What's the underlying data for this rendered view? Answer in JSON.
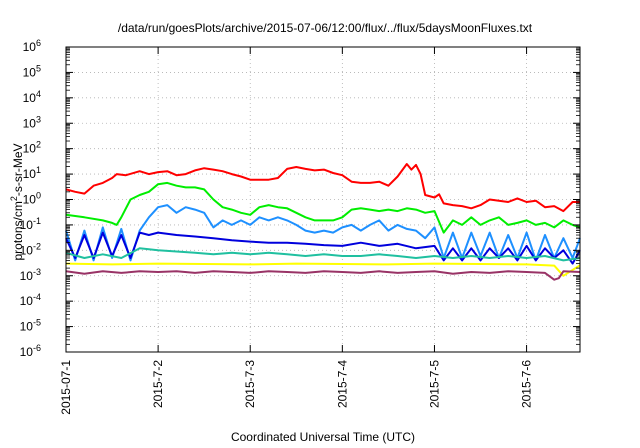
{
  "chart_data": {
    "type": "line",
    "title": "/data/run/goesPlots/archive/2015-07-06/12:00/flux/../flux/5daysMoonFluxes.txt",
    "xlabel": "Coordinated Universal Time (UTC)",
    "ylabel_parts": {
      "main": "protons/cm",
      "sup": "2",
      "rest": "-s-sr-MeV"
    },
    "x_unit": "days since 2015-07-01 00:00 UTC",
    "xlim": [
      0,
      5.58
    ],
    "x_ticks": [
      {
        "value": 0,
        "label": "2015-07-1"
      },
      {
        "value": 1,
        "label": "2015-7-2"
      },
      {
        "value": 2,
        "label": "2015-7-3"
      },
      {
        "value": 3,
        "label": "2015-7-4"
      },
      {
        "value": 4,
        "label": "2015-7-5"
      },
      {
        "value": 5,
        "label": "2015-7-6"
      }
    ],
    "y_scale": "log",
    "ylim": [
      1e-06,
      1000000.0
    ],
    "y_ticks": [
      {
        "exp": -6,
        "base": "10",
        "sup": "-6"
      },
      {
        "exp": -5,
        "base": "10",
        "sup": "-5"
      },
      {
        "exp": -4,
        "base": "10",
        "sup": "-4"
      },
      {
        "exp": -3,
        "base": "10",
        "sup": "-3"
      },
      {
        "exp": -2,
        "base": "10",
        "sup": "-2"
      },
      {
        "exp": -1,
        "base": "10",
        "sup": "-1"
      },
      {
        "exp": 0,
        "base": "10",
        "sup": "0"
      },
      {
        "exp": 1,
        "base": "10",
        "sup": "1"
      },
      {
        "exp": 2,
        "base": "10",
        "sup": "2"
      },
      {
        "exp": 3,
        "base": "10",
        "sup": "3"
      },
      {
        "exp": 4,
        "base": "10",
        "sup": "4"
      },
      {
        "exp": 5,
        "base": "10",
        "sup": "5"
      },
      {
        "exp": 6,
        "base": "10",
        "sup": "6"
      }
    ],
    "grid": true,
    "series": [
      {
        "color": "#ff0000",
        "x": [
          0,
          0.1,
          0.2,
          0.3,
          0.4,
          0.5,
          0.55,
          0.65,
          0.8,
          0.9,
          1.0,
          1.1,
          1.2,
          1.3,
          1.4,
          1.5,
          1.6,
          1.7,
          1.8,
          1.9,
          2.0,
          2.1,
          2.2,
          2.3,
          2.4,
          2.5,
          2.6,
          2.7,
          2.8,
          2.9,
          3.0,
          3.1,
          3.2,
          3.3,
          3.4,
          3.5,
          3.6,
          3.7,
          3.75,
          3.8,
          3.85,
          3.9,
          4.0,
          4.05,
          4.1,
          4.2,
          4.3,
          4.4,
          4.5,
          4.6,
          4.7,
          4.8,
          4.9,
          5.0,
          5.1,
          5.2,
          5.3,
          5.4,
          5.5,
          5.58
        ],
        "y": [
          2.5,
          2.0,
          1.7,
          3.5,
          4.5,
          7.0,
          10,
          9,
          13,
          10,
          12,
          13,
          9,
          10,
          14,
          17,
          15,
          13,
          10,
          8,
          6,
          6,
          6,
          7,
          16,
          19,
          16,
          14,
          15,
          11,
          9,
          5,
          4.5,
          4.5,
          5,
          3.5,
          8,
          25,
          15,
          23,
          10,
          1.5,
          1.2,
          1.6,
          0.7,
          0.6,
          0.55,
          0.45,
          0.6,
          1.0,
          0.9,
          0.8,
          1.1,
          0.8,
          0.9,
          0.5,
          0.55,
          0.35,
          0.8,
          0.8
        ]
      },
      {
        "color": "#00ee00",
        "x": [
          0,
          0.2,
          0.4,
          0.5,
          0.55,
          0.6,
          0.7,
          0.8,
          0.9,
          1.0,
          1.1,
          1.2,
          1.3,
          1.4,
          1.5,
          1.6,
          1.7,
          1.8,
          1.9,
          2.0,
          2.1,
          2.2,
          2.3,
          2.4,
          2.5,
          2.6,
          2.7,
          2.8,
          2.9,
          3.0,
          3.1,
          3.2,
          3.3,
          3.4,
          3.5,
          3.6,
          3.7,
          3.8,
          3.9,
          4.0,
          4.1,
          4.2,
          4.3,
          4.4,
          4.5,
          4.6,
          4.7,
          4.8,
          4.9,
          5.0,
          5.1,
          5.2,
          5.3,
          5.4,
          5.5,
          5.58
        ],
        "y": [
          0.25,
          0.2,
          0.15,
          0.12,
          0.1,
          0.2,
          1.0,
          1.5,
          2.0,
          4.0,
          4.5,
          3.5,
          3.0,
          3.0,
          2.5,
          1.0,
          0.5,
          0.4,
          0.3,
          0.25,
          0.5,
          0.6,
          0.5,
          0.45,
          0.3,
          0.2,
          0.15,
          0.15,
          0.15,
          0.2,
          0.4,
          0.45,
          0.4,
          0.35,
          0.4,
          0.35,
          0.45,
          0.4,
          0.3,
          0.35,
          0.05,
          0.15,
          0.1,
          0.2,
          0.1,
          0.15,
          0.2,
          0.1,
          0.12,
          0.15,
          0.1,
          0.12,
          0.08,
          0.15,
          0.1,
          0.08
        ]
      },
      {
        "color": "#1e90ff",
        "x": [
          0,
          0.1,
          0.2,
          0.3,
          0.4,
          0.5,
          0.6,
          0.7,
          0.8,
          0.9,
          1.0,
          1.1,
          1.2,
          1.3,
          1.4,
          1.5,
          1.6,
          1.7,
          1.8,
          1.9,
          2.0,
          2.1,
          2.2,
          2.3,
          2.4,
          2.5,
          2.6,
          2.7,
          2.8,
          2.9,
          3.0,
          3.1,
          3.2,
          3.3,
          3.4,
          3.5,
          3.6,
          3.7,
          3.8,
          3.9,
          4.0,
          4.1,
          4.2,
          4.3,
          4.4,
          4.5,
          4.6,
          4.7,
          4.8,
          4.9,
          5.0,
          5.1,
          5.2,
          5.3,
          5.4,
          5.5,
          5.58
        ],
        "y": [
          0.06,
          0.004,
          0.06,
          0.004,
          0.08,
          0.005,
          0.07,
          0.004,
          0.06,
          0.2,
          0.5,
          0.6,
          0.3,
          0.5,
          0.4,
          0.3,
          0.08,
          0.15,
          0.1,
          0.15,
          0.1,
          0.2,
          0.15,
          0.2,
          0.15,
          0.1,
          0.06,
          0.05,
          0.06,
          0.05,
          0.08,
          0.1,
          0.06,
          0.1,
          0.15,
          0.06,
          0.1,
          0.07,
          0.06,
          0.03,
          0.08,
          0.005,
          0.05,
          0.005,
          0.05,
          0.006,
          0.05,
          0.005,
          0.04,
          0.005,
          0.05,
          0.004,
          0.04,
          0.005,
          0.03,
          0.005,
          0.03
        ]
      },
      {
        "color": "#0000dd",
        "x": [
          0,
          0.1,
          0.2,
          0.3,
          0.4,
          0.5,
          0.6,
          0.7,
          0.8,
          0.9,
          1.0,
          1.2,
          1.4,
          1.6,
          1.8,
          2.0,
          2.2,
          2.4,
          2.6,
          2.8,
          3.0,
          3.2,
          3.4,
          3.6,
          3.8,
          4.0,
          4.1,
          4.2,
          4.3,
          4.4,
          4.5,
          4.6,
          4.7,
          4.8,
          4.9,
          5.0,
          5.1,
          5.2,
          5.3,
          5.4,
          5.5,
          5.58
        ],
        "y": [
          0.03,
          0.005,
          0.04,
          0.005,
          0.05,
          0.006,
          0.04,
          0.005,
          0.05,
          0.04,
          0.05,
          0.04,
          0.035,
          0.03,
          0.025,
          0.022,
          0.02,
          0.02,
          0.018,
          0.016,
          0.015,
          0.02,
          0.015,
          0.018,
          0.012,
          0.015,
          0.004,
          0.012,
          0.004,
          0.012,
          0.004,
          0.012,
          0.005,
          0.012,
          0.004,
          0.015,
          0.004,
          0.012,
          0.005,
          0.01,
          0.003,
          0.01
        ]
      },
      {
        "color": "#20c0a0",
        "x": [
          0,
          0.2,
          0.4,
          0.6,
          0.8,
          1.0,
          1.2,
          1.4,
          1.6,
          1.8,
          2.0,
          2.2,
          2.4,
          2.6,
          2.8,
          3.0,
          3.2,
          3.4,
          3.6,
          3.8,
          4.0,
          4.2,
          4.4,
          4.6,
          4.8,
          5.0,
          5.2,
          5.4,
          5.58
        ],
        "y": [
          0.008,
          0.005,
          0.007,
          0.005,
          0.012,
          0.01,
          0.009,
          0.008,
          0.007,
          0.008,
          0.007,
          0.008,
          0.007,
          0.006,
          0.007,
          0.006,
          0.006,
          0.007,
          0.006,
          0.005,
          0.006,
          0.005,
          0.006,
          0.005,
          0.006,
          0.005,
          0.006,
          0.004,
          0.005
        ]
      },
      {
        "color": "#ffff00",
        "x": [
          0,
          0.5,
          1.0,
          1.5,
          2.0,
          2.5,
          3.0,
          3.5,
          4.0,
          4.5,
          5.0,
          5.3,
          5.4,
          5.58
        ],
        "y": [
          0.003,
          0.0028,
          0.003,
          0.0029,
          0.0028,
          0.003,
          0.0029,
          0.0028,
          0.003,
          0.0029,
          0.0028,
          0.0025,
          0.001,
          0.0026
        ]
      },
      {
        "color": "#993366",
        "x": [
          0,
          0.2,
          0.4,
          0.6,
          0.8,
          1.0,
          1.2,
          1.4,
          1.6,
          1.8,
          2.0,
          2.2,
          2.4,
          2.6,
          2.8,
          3.0,
          3.2,
          3.4,
          3.6,
          3.8,
          4.0,
          4.2,
          4.4,
          4.6,
          4.8,
          5.0,
          5.2,
          5.3,
          5.35,
          5.4,
          5.58
        ],
        "y": [
          0.0015,
          0.0012,
          0.0015,
          0.0013,
          0.0015,
          0.0014,
          0.0015,
          0.0013,
          0.0015,
          0.0014,
          0.0013,
          0.0015,
          0.0014,
          0.0013,
          0.0015,
          0.0014,
          0.0013,
          0.0015,
          0.0013,
          0.0014,
          0.0015,
          0.0012,
          0.0014,
          0.0013,
          0.0015,
          0.0014,
          0.0013,
          0.0007,
          0.0008,
          0.0015,
          0.0014
        ]
      }
    ]
  }
}
